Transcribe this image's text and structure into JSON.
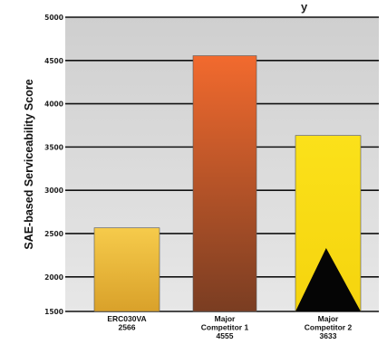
{
  "chart_data": {
    "type": "bar",
    "title_fragment": "y",
    "ylabel": "SAE-based Serviceability Score",
    "xlabel": "",
    "ylim": [
      1600,
      5000
    ],
    "yticks": [
      1500,
      2000,
      2500,
      3000,
      3500,
      4000,
      4500,
      5000
    ],
    "ytick_labels": [
      "1500",
      "2000",
      "2500",
      "3000",
      "3500",
      "4000",
      "4500",
      "5000"
    ],
    "grid": true,
    "categories": [
      {
        "lines": [
          "ERC030VA",
          "2566"
        ]
      },
      {
        "lines": [
          "Major",
          "Competitor 1",
          "4555"
        ]
      },
      {
        "lines": [
          "Major",
          "Competitor 2",
          "3633"
        ]
      }
    ],
    "values": [
      2566,
      4555,
      3633
    ],
    "bar_colors": [
      {
        "top": "#f6cb4b",
        "bottom": "#d9a12a"
      },
      {
        "top": "#f26a2e",
        "bottom": "#7a3d22"
      },
      {
        "top": "#fbe11a",
        "bottom": "#f5d40e"
      }
    ],
    "plot_colors": {
      "background_top": "#cfcfcf",
      "background_bottom": "#e7e7e7",
      "grid": "#111111"
    },
    "annotation": {
      "kind": "black-triangle",
      "bar_index": 2
    }
  }
}
